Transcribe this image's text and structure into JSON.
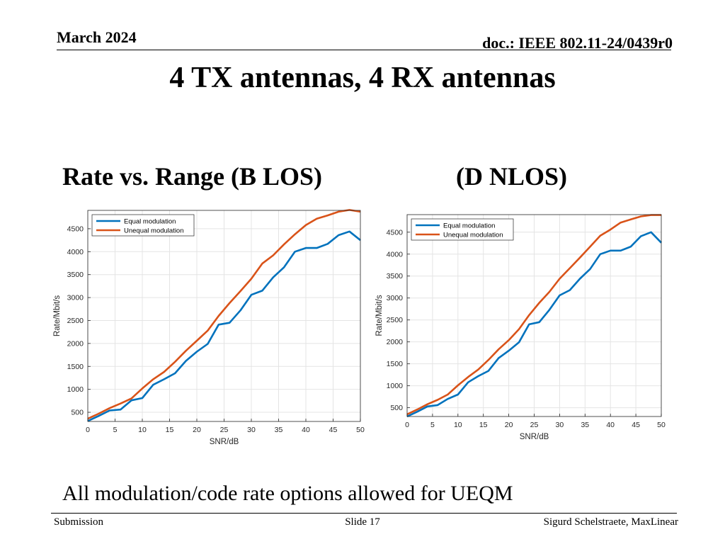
{
  "header": {
    "date": "March 2024",
    "doc": "doc.: IEEE 802.11-24/0439r0"
  },
  "slide_title": "4 TX antennas, 4 RX antennas",
  "subtitles": {
    "left": "Rate vs. Range (B LOS)",
    "right": "(D NLOS)"
  },
  "note": "All modulation/code rate options allowed for UEQM",
  "footer": {
    "left": "Submission",
    "center": "Slide 17",
    "right": "Sigurd Schelstraete, MaxLinear"
  },
  "colors": {
    "equal": "#0072BD",
    "unequal": "#D95319"
  },
  "chart_data": [
    {
      "type": "line",
      "title": "",
      "xlabel": "SNR/dB",
      "ylabel": "Rate/Mbit/s",
      "xlim": [
        0,
        50
      ],
      "ylim": [
        300,
        4900
      ],
      "xticks": [
        0,
        5,
        10,
        15,
        20,
        25,
        30,
        35,
        40,
        45,
        50
      ],
      "yticks": [
        500,
        1000,
        1500,
        2000,
        2500,
        3000,
        3500,
        4000,
        4500
      ],
      "grid": true,
      "legend": "top-left",
      "x": [
        0,
        2,
        4,
        6,
        8,
        10,
        12,
        14,
        16,
        18,
        20,
        22,
        24,
        26,
        28,
        30,
        32,
        34,
        36,
        38,
        40,
        42,
        44,
        46,
        48,
        50
      ],
      "series": [
        {
          "name": "Equal modulation",
          "values": [
            310,
            420,
            540,
            560,
            760,
            810,
            1100,
            1220,
            1350,
            1620,
            1820,
            1990,
            2410,
            2450,
            2720,
            3060,
            3150,
            3440,
            3660,
            4000,
            4080,
            4080,
            4170,
            4360,
            4440,
            4250
          ]
        },
        {
          "name": "Unequal modulation",
          "values": [
            360,
            470,
            590,
            690,
            800,
            1020,
            1220,
            1380,
            1600,
            1840,
            2060,
            2280,
            2600,
            2880,
            3140,
            3410,
            3740,
            3920,
            4160,
            4380,
            4580,
            4720,
            4790,
            4870,
            4910,
            4870
          ]
        }
      ]
    },
    {
      "type": "line",
      "title": "",
      "xlabel": "SNR/dB",
      "ylabel": "Rate/Mbit/s",
      "xlim": [
        0,
        50
      ],
      "ylim": [
        300,
        4900
      ],
      "xticks": [
        0,
        5,
        10,
        15,
        20,
        25,
        30,
        35,
        40,
        45,
        50
      ],
      "yticks": [
        500,
        1000,
        1500,
        2000,
        2500,
        3000,
        3500,
        4000,
        4500
      ],
      "grid": true,
      "legend": "top-left",
      "x": [
        0,
        2,
        4,
        6,
        8,
        10,
        12,
        14,
        16,
        18,
        20,
        22,
        24,
        26,
        28,
        30,
        32,
        34,
        36,
        38,
        40,
        42,
        44,
        46,
        48,
        50
      ],
      "series": [
        {
          "name": "Equal modulation",
          "values": [
            300,
            410,
            530,
            560,
            700,
            800,
            1080,
            1220,
            1340,
            1630,
            1800,
            1990,
            2400,
            2450,
            2730,
            3060,
            3180,
            3440,
            3660,
            4000,
            4080,
            4080,
            4170,
            4410,
            4500,
            4260
          ]
        },
        {
          "name": "Unequal modulation",
          "values": [
            350,
            460,
            580,
            680,
            800,
            1010,
            1200,
            1370,
            1590,
            1830,
            2040,
            2290,
            2610,
            2890,
            3140,
            3440,
            3680,
            3920,
            4170,
            4420,
            4560,
            4720,
            4790,
            4860,
            4890,
            4890
          ]
        }
      ]
    }
  ]
}
